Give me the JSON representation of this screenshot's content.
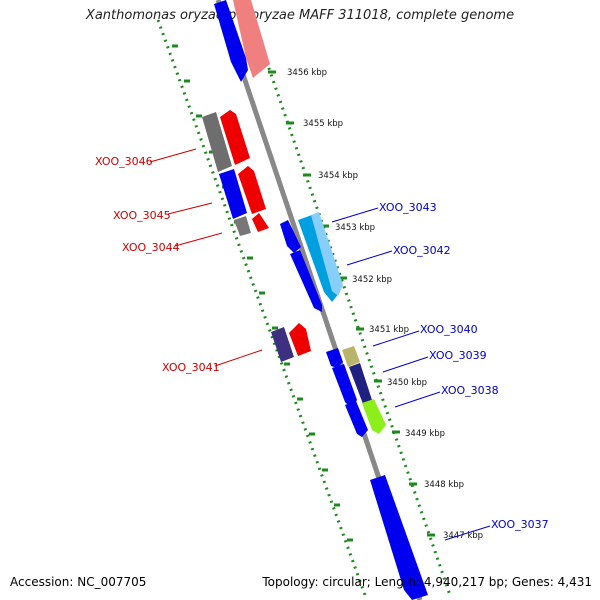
{
  "title": "Xanthomonas oryzae pv. oryzae MAFF 311018, complete genome",
  "footer": {
    "accession": "Accession: NC_007705",
    "summary": "Topology: circular; Length: 4,940,217 bp; Genes: 4,431"
  },
  "colors": {
    "backbone": "#888888",
    "ruler_dots": "#1e8a1e",
    "forward_label": "#cc0000",
    "reverse_label": "#0000cc"
  },
  "ticks_kbp": [
    3456,
    3455,
    3454,
    3453,
    3452,
    3451,
    3450,
    3449,
    3448,
    3447
  ],
  "tick_labels": [
    "3456 kbp",
    "3455 kbp",
    "3454 kbp",
    "3453 kbp",
    "3452 kbp",
    "3451 kbp",
    "3450 kbp",
    "3449 kbp",
    "3448 kbp",
    "3447 kbp"
  ],
  "genes": [
    {
      "id": "XOO_3046",
      "strand": "forward",
      "label_color": "red"
    },
    {
      "id": "XOO_3045",
      "strand": "forward",
      "label_color": "red"
    },
    {
      "id": "XOO_3044",
      "strand": "forward",
      "label_color": "red"
    },
    {
      "id": "XOO_3041",
      "strand": "forward",
      "label_color": "red"
    },
    {
      "id": "XOO_3043",
      "strand": "reverse",
      "label_color": "blue"
    },
    {
      "id": "XOO_3042",
      "strand": "reverse",
      "label_color": "blue"
    },
    {
      "id": "XOO_3040",
      "strand": "reverse",
      "label_color": "blue"
    },
    {
      "id": "XOO_3039",
      "strand": "reverse",
      "label_color": "blue"
    },
    {
      "id": "XOO_3038",
      "strand": "reverse",
      "label_color": "blue"
    },
    {
      "id": "XOO_3037",
      "strand": "reverse",
      "label_color": "blue"
    }
  ]
}
